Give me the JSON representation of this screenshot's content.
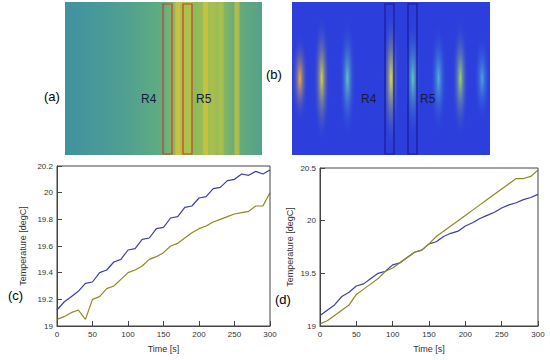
{
  "images": [
    {
      "title": "(a)",
      "regions": [
        "R4",
        "R5"
      ]
    },
    {
      "title": "(b)",
      "regions": [
        "R4",
        "R5"
      ]
    }
  ],
  "chart_data": [
    {
      "type": "line",
      "title": "(c)",
      "x_label": "Time [s]",
      "y_label": "Temperature [degC]",
      "x": [
        0,
        10,
        20,
        30,
        40,
        50,
        60,
        70,
        80,
        90,
        100,
        110,
        120,
        130,
        140,
        150,
        160,
        170,
        180,
        190,
        200,
        210,
        220,
        230,
        240,
        250,
        260,
        270,
        280,
        290,
        300
      ],
      "series": [
        {
          "color": "#3c3cb0",
          "values": [
            19.12,
            19.18,
            19.22,
            19.26,
            19.32,
            19.33,
            19.4,
            19.42,
            19.48,
            19.5,
            19.57,
            19.58,
            19.65,
            19.66,
            19.73,
            19.74,
            19.81,
            19.82,
            19.89,
            19.9,
            19.96,
            19.97,
            20.03,
            20.04,
            20.09,
            20.1,
            20.14,
            20.13,
            20.16,
            20.14,
            20.17
          ]
        },
        {
          "color": "#8f8a1e",
          "values": [
            19.05,
            19.07,
            19.1,
            19.12,
            19.05,
            19.2,
            19.22,
            19.28,
            19.3,
            19.35,
            19.4,
            19.42,
            19.45,
            19.5,
            19.52,
            19.55,
            19.6,
            19.62,
            19.66,
            19.7,
            19.73,
            19.75,
            19.78,
            19.8,
            19.82,
            19.84,
            19.85,
            19.86,
            19.9,
            19.9,
            20.0
          ]
        }
      ],
      "xlim": [
        0,
        300
      ],
      "xticks": [
        0,
        50,
        100,
        150,
        200,
        250,
        300
      ],
      "ylim": [
        19,
        20.2
      ],
      "yticks": [
        19,
        19.2,
        19.4,
        19.6,
        19.8,
        20,
        20.2
      ],
      "grid": false
    },
    {
      "type": "line",
      "title": "(d)",
      "x_label": "Time [s]",
      "y_label": "Temperature [degC]",
      "x": [
        0,
        10,
        20,
        30,
        40,
        50,
        60,
        70,
        80,
        90,
        100,
        110,
        120,
        130,
        140,
        150,
        160,
        170,
        180,
        190,
        200,
        210,
        220,
        230,
        240,
        250,
        260,
        270,
        280,
        290,
        300
      ],
      "series": [
        {
          "color": "#3c3cb0",
          "values": [
            19.1,
            19.15,
            19.2,
            19.28,
            19.32,
            19.38,
            19.4,
            19.45,
            19.5,
            19.52,
            19.58,
            19.6,
            19.65,
            19.7,
            19.72,
            19.78,
            19.8,
            19.85,
            19.88,
            19.9,
            19.95,
            19.98,
            20.02,
            20.05,
            20.08,
            20.12,
            20.15,
            20.17,
            20.2,
            20.22,
            20.25
          ]
        },
        {
          "color": "#8f8a1e",
          "values": [
            19.02,
            19.05,
            19.1,
            19.15,
            19.2,
            19.3,
            19.35,
            19.4,
            19.45,
            19.52,
            19.55,
            19.6,
            19.65,
            19.7,
            19.72,
            19.78,
            19.85,
            19.9,
            19.95,
            20.0,
            20.05,
            20.1,
            20.15,
            20.2,
            20.25,
            20.3,
            20.35,
            20.4,
            20.4,
            20.42,
            20.48
          ]
        }
      ],
      "xlim": [
        0,
        300
      ],
      "xticks": [
        0,
        50,
        100,
        150,
        200,
        250,
        300
      ],
      "ylim": [
        19,
        20.5
      ],
      "yticks": [
        19,
        19.5,
        20,
        20.5
      ],
      "grid": false
    }
  ]
}
